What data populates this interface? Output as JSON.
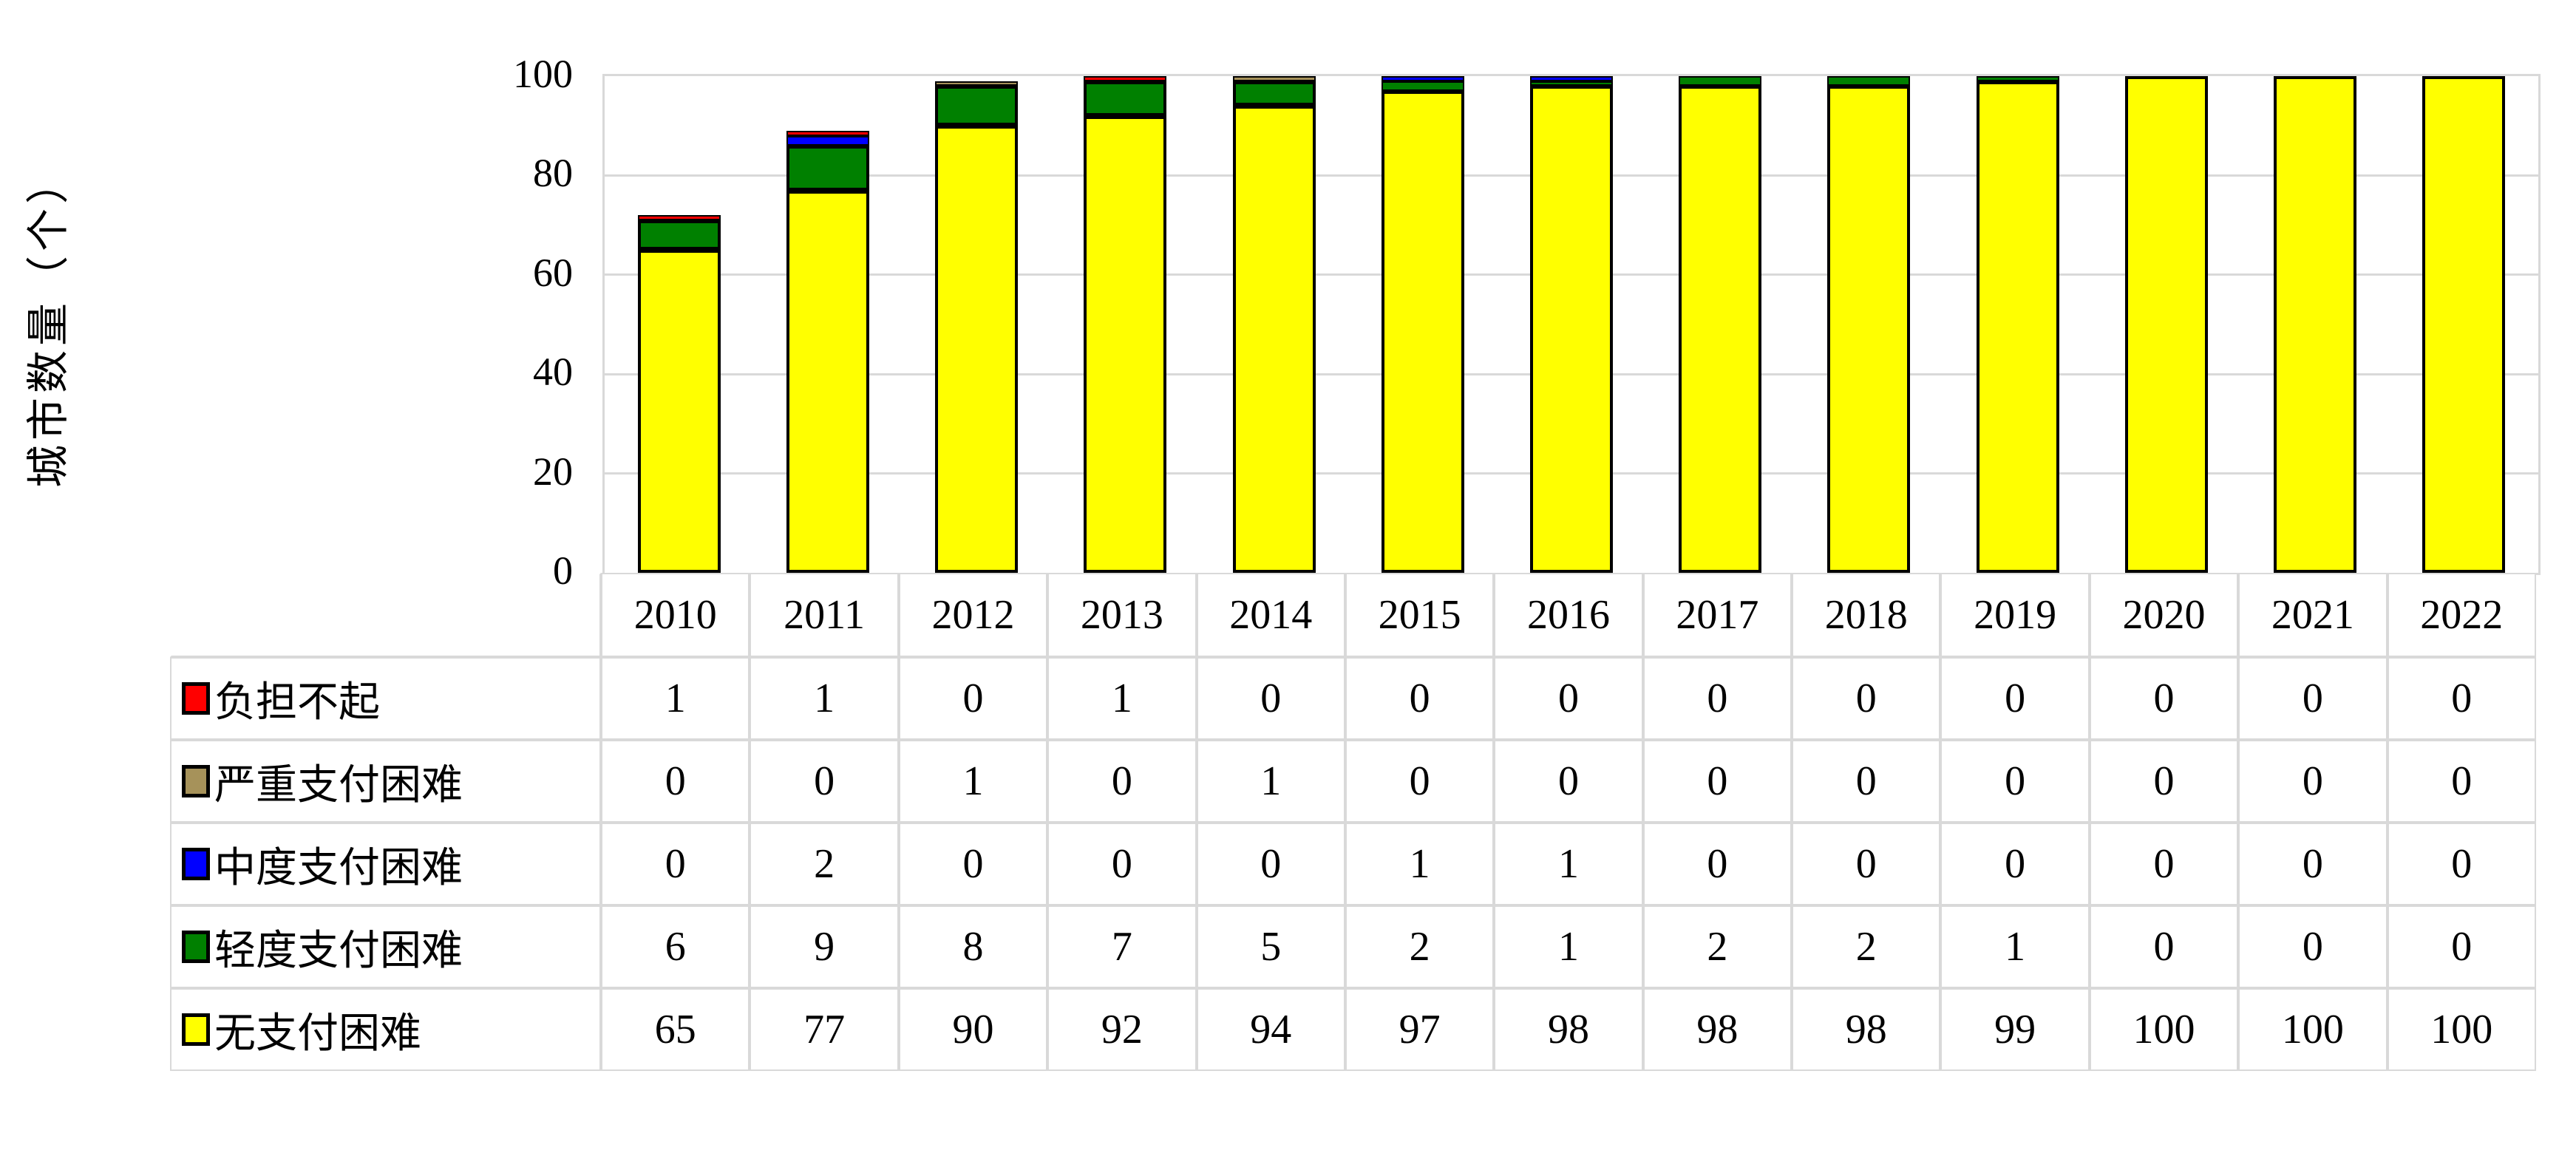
{
  "chart_data": {
    "type": "bar",
    "stacked": true,
    "title": "",
    "xlabel": "",
    "ylabel": "城市数量（个）",
    "categories": [
      "2010",
      "2011",
      "2012",
      "2013",
      "2014",
      "2015",
      "2016",
      "2017",
      "2018",
      "2019",
      "2020",
      "2021",
      "2022"
    ],
    "ylim": [
      0,
      100
    ],
    "yticks": [
      0,
      20,
      40,
      60,
      80,
      100
    ],
    "grid": "horizontal",
    "legend_position": "table-rows-left",
    "series": [
      {
        "name": "负担不起",
        "color": "#FF0000",
        "values": [
          1,
          1,
          0,
          1,
          0,
          0,
          0,
          0,
          0,
          0,
          0,
          0,
          0
        ]
      },
      {
        "name": "严重支付困难",
        "color": "#A6925A",
        "values": [
          0,
          0,
          1,
          0,
          1,
          0,
          0,
          0,
          0,
          0,
          0,
          0,
          0
        ]
      },
      {
        "name": "中度支付困难",
        "color": "#0000FF",
        "values": [
          0,
          2,
          0,
          0,
          0,
          1,
          1,
          0,
          0,
          0,
          0,
          0,
          0
        ]
      },
      {
        "name": "轻度支付困难",
        "color": "#008000",
        "values": [
          6,
          9,
          8,
          7,
          5,
          2,
          1,
          2,
          2,
          1,
          0,
          0,
          0
        ]
      },
      {
        "name": "无支付困难",
        "color": "#FFFF00",
        "values": [
          65,
          77,
          90,
          92,
          94,
          97,
          98,
          98,
          98,
          99,
          100,
          100,
          100
        ]
      }
    ],
    "stack_order_bottom_to_top": [
      "无支付困难",
      "轻度支付困难",
      "中度支付困难",
      "严重支付困难",
      "负担不起"
    ]
  },
  "colors": {
    "background": "#FFFFFF",
    "gridline": "#D9D9D9",
    "table_border": "#D9D9D9",
    "bar_border": "#000000",
    "text": "#000000"
  }
}
